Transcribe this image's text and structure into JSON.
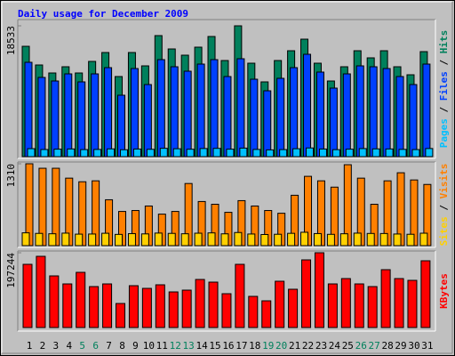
{
  "chart_data": [
    {
      "type": "bar",
      "title": "Daily usage for December 2009",
      "ylim": [
        0,
        18533
      ],
      "yticks": [
        18533
      ],
      "legend_separator": " / ",
      "series": [
        {
          "name": "Hits",
          "color": "#00805c",
          "values": [
            15630,
            12985,
            11851,
            12733,
            11851,
            13490,
            14750,
            11346,
            14750,
            12859,
            17146,
            15255,
            14372,
            15507,
            17020,
            13616,
            18533,
            13237,
            10590,
            13616,
            15002,
            16641,
            13237,
            10716,
            12733,
            15002,
            13994,
            15002,
            12733,
            11598,
            14876
          ]
        },
        {
          "name": "Files",
          "color": "#0040ff",
          "values": [
            13363,
            11220,
            10716,
            11725,
            10590,
            11725,
            12607,
            8699,
            12481,
            10212,
            13742,
            12733,
            12103,
            13111,
            13742,
            11346,
            13868,
            10968,
            9329,
            11094,
            12607,
            14498,
            11977,
            9707,
            11725,
            12859,
            12733,
            12481,
            11346,
            10212,
            13111
          ]
        },
        {
          "name": "Pages",
          "color": "#00c0ff",
          "values": [
            1130,
            1010,
            1060,
            1090,
            1000,
            1020,
            1100,
            980,
            1080,
            1040,
            1180,
            1120,
            1050,
            1150,
            1170,
            1060,
            1210,
            1020,
            960,
            1000,
            1120,
            1230,
            1080,
            990,
            1060,
            1140,
            1100,
            1090,
            1030,
            1000,
            1150
          ]
        }
      ]
    },
    {
      "type": "bar",
      "ylim": [
        0,
        1310
      ],
      "yticks": [
        1310
      ],
      "legend_separator": " / ",
      "series": [
        {
          "name": "Visits",
          "color": "#ff8000",
          "values": [
            1310,
            1238,
            1238,
            1080,
            1022,
            1037,
            734,
            547,
            562,
            634,
            504,
            547,
            994,
            706,
            662,
            533,
            720,
            634,
            562,
            518,
            806,
            1109,
            1037,
            936,
            1295,
            1080,
            662,
            1037,
            1166,
            1051,
            979
          ]
        },
        {
          "name": "Sites",
          "color": "#ffd000",
          "values": [
            205,
            196,
            190,
            200,
            184,
            186,
            198,
            180,
            192,
            188,
            201,
            196,
            190,
            199,
            204,
            189,
            210,
            186,
            178,
            182,
            197,
            214,
            193,
            181,
            190,
            200,
            195,
            194,
            186,
            182,
            199
          ]
        }
      ]
    },
    {
      "type": "bar",
      "ylim": [
        0,
        197244
      ],
      "yticks": [
        197244
      ],
      "categories": [
        "1",
        "2",
        "3",
        "4",
        "5",
        "6",
        "7",
        "8",
        "9",
        "10",
        "11",
        "12",
        "13",
        "14",
        "15",
        "16",
        "17",
        "18",
        "19",
        "20",
        "21",
        "22",
        "23",
        "24",
        "25",
        "26",
        "27",
        "28",
        "29",
        "30",
        "31"
      ],
      "label_colors": [
        "#000000",
        "#000000",
        "#000000",
        "#000000",
        "#00805c",
        "#00805c",
        "#000000",
        "#000000",
        "#000000",
        "#000000",
        "#000000",
        "#00805c",
        "#00805c",
        "#000000",
        "#000000",
        "#000000",
        "#000000",
        "#000000",
        "#00805c",
        "#00805c",
        "#000000",
        "#000000",
        "#000000",
        "#000000",
        "#000000",
        "#00805c",
        "#00805c",
        "#000000",
        "#000000",
        "#000000",
        "#000000"
      ],
      "series": [
        {
          "name": "KBytes",
          "color": "#ff0000",
          "values": [
            166708,
            187840,
            136184,
            115052,
            145576,
            108008,
            115052,
            63396,
            110356,
            103312,
            112704,
            93920,
            98616,
            126792,
            119748,
            89224,
            166708,
            82180,
            70440,
            122096,
            100964,
            178448,
            197244,
            115052,
            129140,
            115052,
            108008,
            152620,
            129140,
            124444,
            176100
          ]
        }
      ]
    }
  ]
}
